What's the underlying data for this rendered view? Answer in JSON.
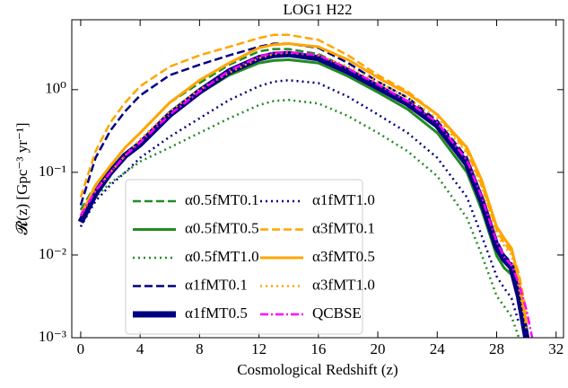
{
  "chart_data": {
    "type": "line",
    "title": "LOG1 H22",
    "xlabel": "Cosmological Redshift (z)",
    "ylabel": "𝓡(z) [Gpc⁻³ yr⁻¹]",
    "log_y": true,
    "legend": "lower left",
    "xlim": [
      -0.6,
      32.5
    ],
    "xticks": [
      0,
      4,
      8,
      12,
      16,
      20,
      24,
      28,
      32
    ],
    "ylim": [
      0.001,
      7
    ],
    "yticks": [
      {
        "value": 0.001,
        "label": "10⁻³"
      },
      {
        "value": 0.01,
        "label": "10⁻²"
      },
      {
        "value": 0.1,
        "label": "10⁻¹"
      },
      {
        "value": 1,
        "label": "10⁰"
      }
    ],
    "x": [
      0,
      1,
      2,
      3,
      4,
      6,
      8,
      10,
      12,
      13,
      14,
      16,
      18,
      20,
      22,
      24,
      26,
      27,
      28,
      28.5,
      29,
      29.5,
      30,
      30.5
    ],
    "series": [
      {
        "name": "α0.5fMT0.1",
        "color": "#228b22",
        "dash": "dashed",
        "width": 2.5,
        "values": [
          0.035,
          0.07,
          0.12,
          0.2,
          0.3,
          0.7,
          1.2,
          2.0,
          2.9,
          3.1,
          3.1,
          2.7,
          1.8,
          1.15,
          0.72,
          0.38,
          0.13,
          0.045,
          0.013,
          0.009,
          0.0072,
          0.0035,
          0.0012,
          null
        ]
      },
      {
        "name": "α0.5fMT0.5",
        "color": "#228b22",
        "dash": "solid",
        "width": 3,
        "values": [
          0.028,
          0.06,
          0.1,
          0.16,
          0.22,
          0.48,
          0.9,
          1.5,
          2.1,
          2.25,
          2.3,
          2.1,
          1.45,
          0.93,
          0.58,
          0.3,
          0.1,
          0.035,
          0.0098,
          0.007,
          0.0058,
          0.0028,
          0.001,
          null
        ]
      },
      {
        "name": "α0.5fMT1.0",
        "color": "#228b22",
        "dash": "dotted",
        "width": 2.5,
        "values": [
          0.025,
          0.05,
          0.075,
          0.1,
          0.135,
          0.2,
          0.3,
          0.45,
          0.65,
          0.73,
          0.75,
          0.68,
          0.48,
          0.3,
          0.18,
          0.09,
          0.028,
          0.01,
          0.0032,
          0.0024,
          0.0018,
          0.001,
          null,
          null
        ]
      },
      {
        "name": "α1fMT0.1",
        "color": "#000080",
        "dash": "dashed",
        "width": 2.5,
        "values": [
          0.04,
          0.15,
          0.32,
          0.55,
          0.85,
          1.5,
          2.0,
          2.6,
          3.3,
          3.6,
          3.6,
          3.2,
          2.1,
          1.25,
          0.8,
          0.42,
          0.15,
          0.05,
          0.015,
          0.01,
          0.008,
          0.004,
          0.0015,
          null
        ]
      },
      {
        "name": "α1fMT0.5",
        "color": "#000080",
        "dash": "solid",
        "width": 7,
        "values": [
          0.025,
          0.056,
          0.1,
          0.16,
          0.22,
          0.5,
          0.95,
          1.66,
          2.4,
          2.63,
          2.69,
          2.4,
          1.66,
          1.07,
          0.68,
          0.37,
          0.126,
          0.045,
          0.0126,
          0.0089,
          0.0071,
          0.0032,
          0.001,
          null
        ]
      },
      {
        "name": "α1fMT1.0",
        "color": "#000080",
        "dash": "dotted",
        "width": 2.5,
        "values": [
          0.022,
          0.045,
          0.07,
          0.1,
          0.15,
          0.27,
          0.45,
          0.75,
          1.1,
          1.25,
          1.3,
          1.2,
          0.82,
          0.5,
          0.3,
          0.15,
          0.05,
          0.017,
          0.0055,
          0.004,
          0.003,
          0.0015,
          null,
          null
        ]
      },
      {
        "name": "α3fMT0.1",
        "color": "#ffa500",
        "dash": "dashed",
        "width": 2.5,
        "values": [
          0.05,
          0.18,
          0.4,
          0.7,
          1.1,
          1.9,
          2.6,
          3.3,
          4.2,
          4.6,
          4.6,
          4.0,
          2.6,
          1.5,
          0.95,
          0.5,
          0.18,
          0.07,
          0.02,
          0.014,
          0.011,
          0.006,
          0.002,
          null
        ]
      },
      {
        "name": "α3fMT0.5",
        "color": "#ffa500",
        "dash": "solid",
        "width": 3,
        "values": [
          0.03,
          0.07,
          0.12,
          0.2,
          0.3,
          0.7,
          1.3,
          2.1,
          3.2,
          3.5,
          3.6,
          3.3,
          2.3,
          1.4,
          0.9,
          0.5,
          0.2,
          0.08,
          0.022,
          0.016,
          0.012,
          0.005,
          0.0015,
          null
        ]
      },
      {
        "name": "α3fMT1.0",
        "color": "#ffa500",
        "dash": "dotted",
        "width": 2.5,
        "values": [
          0.03,
          0.06,
          0.1,
          0.16,
          0.25,
          0.55,
          1.0,
          1.6,
          2.4,
          2.7,
          2.8,
          2.6,
          1.9,
          1.25,
          0.8,
          0.45,
          0.17,
          0.065,
          0.018,
          0.013,
          0.01,
          0.004,
          0.0013,
          null
        ]
      },
      {
        "name": "QCBSE",
        "color": "#ff00ff",
        "dash": "dashdot",
        "width": 2.5,
        "values": [
          0.03,
          0.06,
          0.1,
          0.16,
          0.23,
          0.5,
          0.95,
          1.7,
          2.5,
          2.8,
          2.85,
          2.6,
          1.8,
          1.15,
          0.72,
          0.4,
          0.14,
          0.05,
          0.0145,
          0.0095,
          0.0075,
          0.0045,
          0.0022,
          0.0008
        ]
      }
    ]
  }
}
